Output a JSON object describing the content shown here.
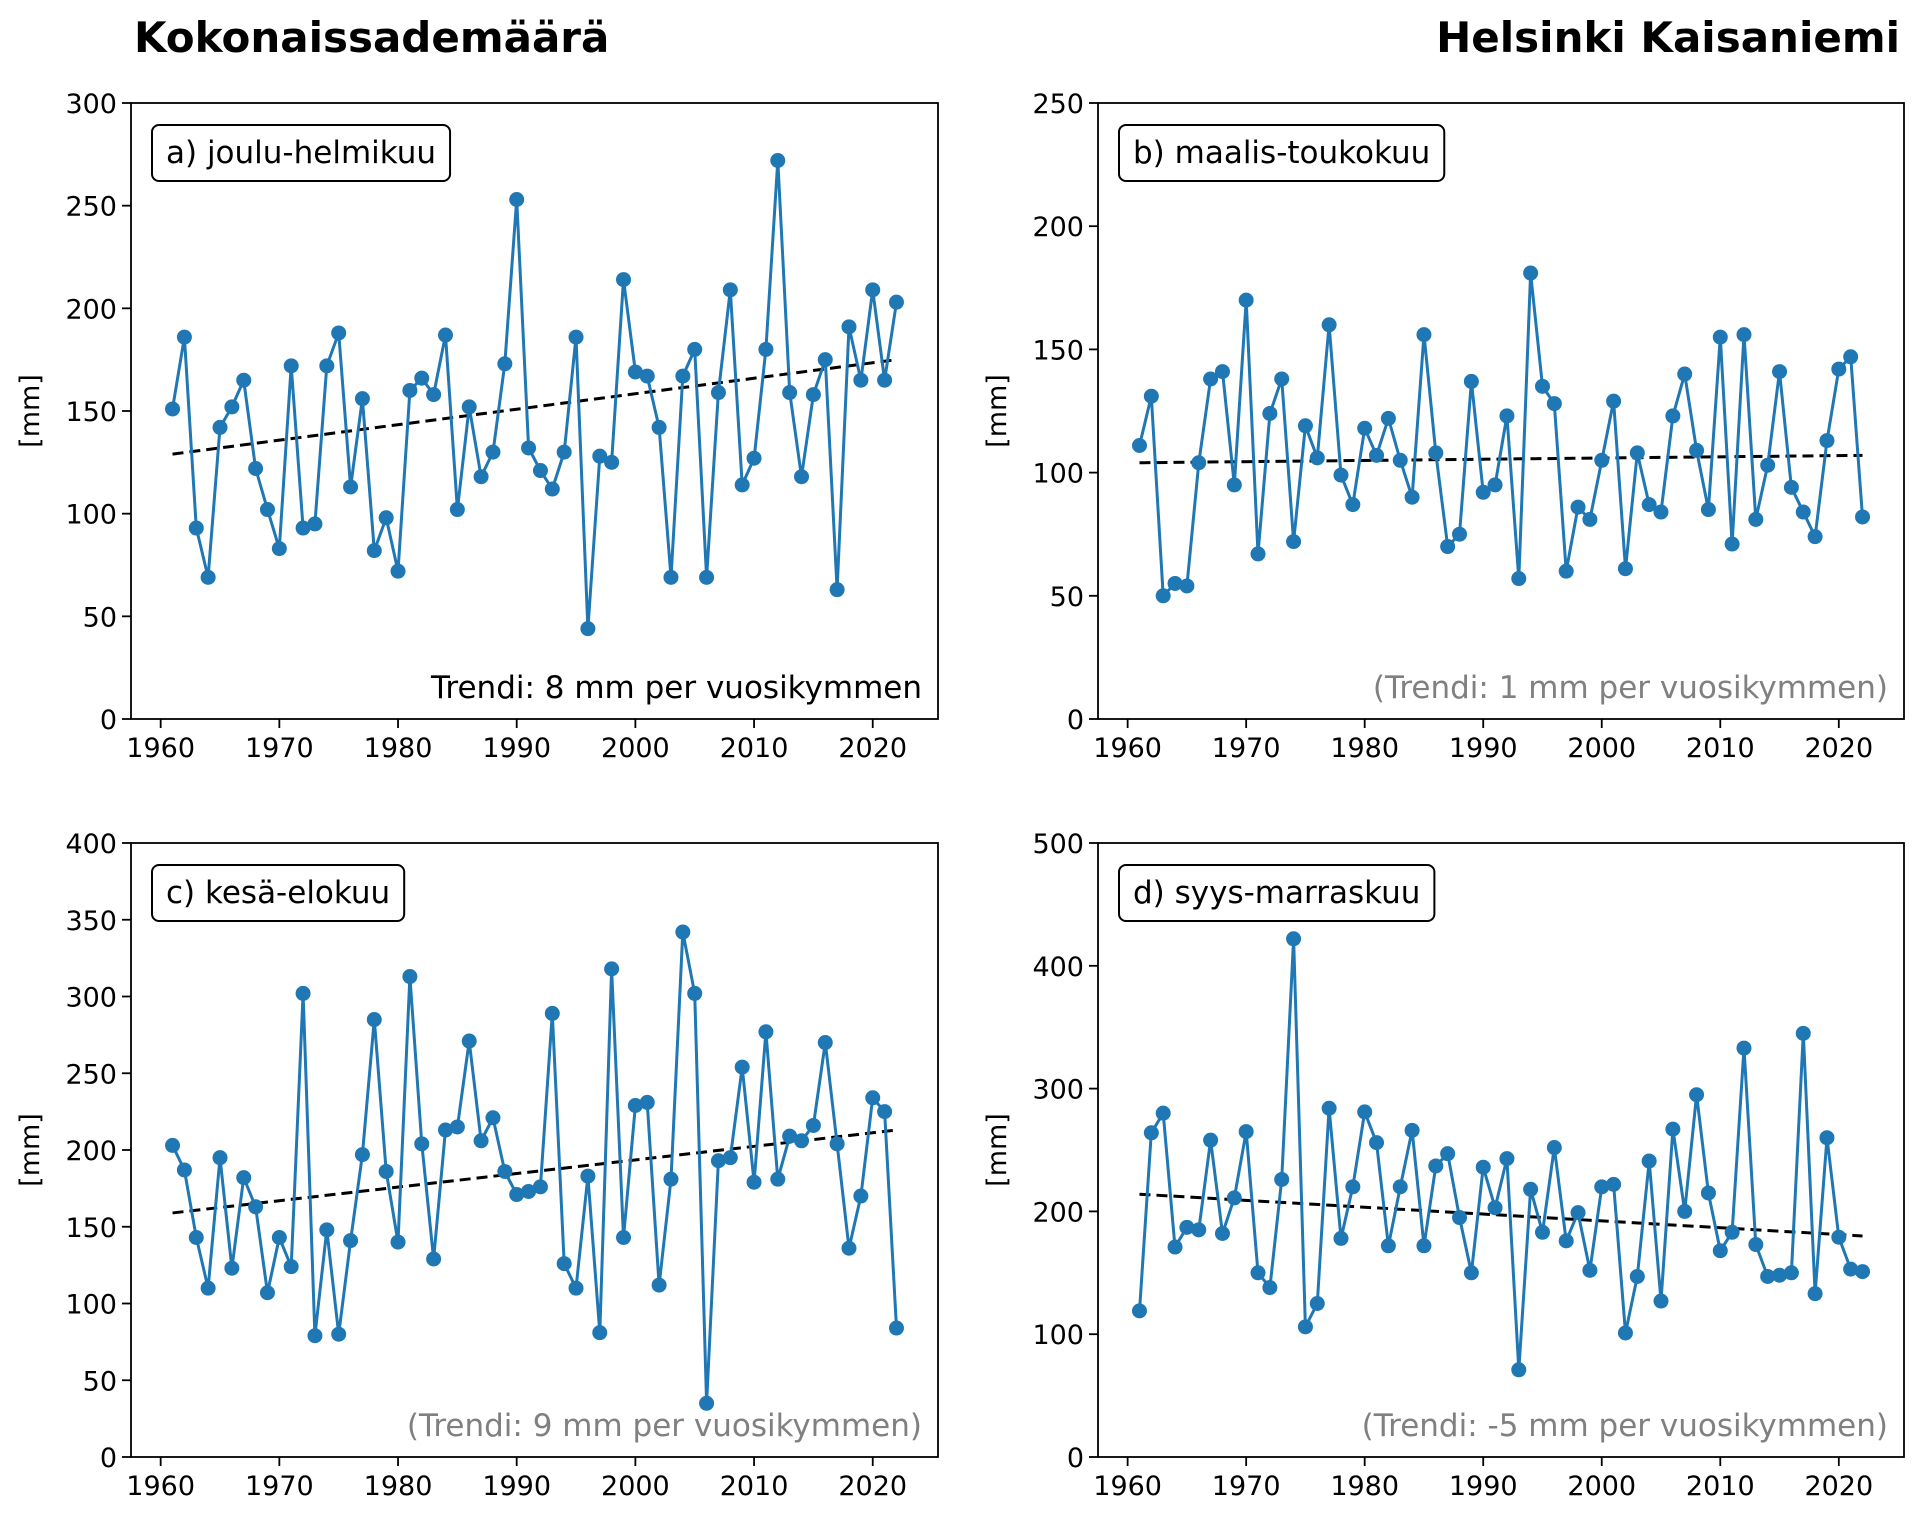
{
  "titles": {
    "left": "Kokonaissademäärä",
    "right": "Helsinki Kaisaniemi"
  },
  "colors": {
    "series": "#1f77b4",
    "trend_line": "#000000",
    "trend_text_significant": "#000000",
    "trend_text_insignificant": "#808080"
  },
  "chart_data": [
    {
      "type": "line",
      "panel": "a",
      "label": "a) joulu-helmikuu",
      "ylabel": "[mm]",
      "xlabel": "",
      "xlim": [
        1957.5,
        2025.5
      ],
      "ylim": [
        0,
        300
      ],
      "xticks": [
        1960,
        1970,
        1980,
        1990,
        2000,
        2010,
        2020
      ],
      "yticks": [
        0,
        50,
        100,
        150,
        200,
        250,
        300
      ],
      "grid": false,
      "annotation": "Trendi: 8 mm per vuosikymmen",
      "annotation_significant": true,
      "x": [
        1961,
        1962,
        1963,
        1964,
        1965,
        1966,
        1967,
        1968,
        1969,
        1970,
        1971,
        1972,
        1973,
        1974,
        1975,
        1976,
        1977,
        1978,
        1979,
        1980,
        1981,
        1982,
        1983,
        1984,
        1985,
        1986,
        1987,
        1988,
        1989,
        1990,
        1991,
        1992,
        1993,
        1994,
        1995,
        1996,
        1997,
        1998,
        1999,
        2000,
        2001,
        2002,
        2003,
        2004,
        2005,
        2006,
        2007,
        2008,
        2009,
        2010,
        2011,
        2012,
        2013,
        2014,
        2015,
        2016,
        2017,
        2018,
        2019,
        2020,
        2021,
        2022
      ],
      "values": [
        151,
        186,
        93,
        69,
        142,
        152,
        165,
        122,
        102,
        83,
        172,
        93,
        95,
        172,
        188,
        113,
        156,
        82,
        98,
        72,
        160,
        166,
        158,
        187,
        102,
        152,
        118,
        130,
        173,
        253,
        132,
        121,
        112,
        130,
        186,
        44,
        128,
        125,
        214,
        169,
        167,
        142,
        69,
        167,
        180,
        69,
        159,
        209,
        114,
        127,
        180,
        272,
        159,
        118,
        158,
        175,
        63,
        191,
        165,
        209,
        165,
        203
      ],
      "trend": {
        "start": [
          1961,
          129
        ],
        "end": [
          2022,
          175
        ]
      }
    },
    {
      "type": "line",
      "panel": "b",
      "label": "b) maalis-toukokuu",
      "ylabel": "[mm]",
      "xlabel": "",
      "xlim": [
        1957.5,
        2025.5
      ],
      "ylim": [
        0,
        250
      ],
      "xticks": [
        1960,
        1970,
        1980,
        1990,
        2000,
        2010,
        2020
      ],
      "yticks": [
        0,
        50,
        100,
        150,
        200,
        250
      ],
      "grid": false,
      "annotation": "(Trendi: 1 mm per vuosikymmen)",
      "annotation_significant": false,
      "x": [
        1961,
        1962,
        1963,
        1964,
        1965,
        1966,
        1967,
        1968,
        1969,
        1970,
        1971,
        1972,
        1973,
        1974,
        1975,
        1976,
        1977,
        1978,
        1979,
        1980,
        1981,
        1982,
        1983,
        1984,
        1985,
        1986,
        1987,
        1988,
        1989,
        1990,
        1991,
        1992,
        1993,
        1994,
        1995,
        1996,
        1997,
        1998,
        1999,
        2000,
        2001,
        2002,
        2003,
        2004,
        2005,
        2006,
        2007,
        2008,
        2009,
        2010,
        2011,
        2012,
        2013,
        2014,
        2015,
        2016,
        2017,
        2018,
        2019,
        2020,
        2021,
        2022
      ],
      "values": [
        111,
        131,
        50,
        55,
        54,
        104,
        138,
        141,
        95,
        170,
        67,
        124,
        138,
        72,
        119,
        106,
        160,
        99,
        87,
        118,
        107,
        122,
        105,
        90,
        156,
        108,
        70,
        75,
        137,
        92,
        95,
        123,
        57,
        181,
        135,
        128,
        60,
        86,
        81,
        105,
        129,
        61,
        108,
        87,
        84,
        123,
        140,
        109,
        85,
        155,
        71,
        156,
        81,
        103,
        141,
        94,
        84,
        74,
        113,
        142,
        147,
        82
      ],
      "trend": {
        "start": [
          1961,
          104
        ],
        "end": [
          2022,
          107
        ]
      }
    },
    {
      "type": "line",
      "panel": "c",
      "label": "c) kesä-elokuu",
      "ylabel": "[mm]",
      "xlabel": "",
      "xlim": [
        1957.5,
        2025.5
      ],
      "ylim": [
        0,
        400
      ],
      "xticks": [
        1960,
        1970,
        1980,
        1990,
        2000,
        2010,
        2020
      ],
      "yticks": [
        0,
        50,
        100,
        150,
        200,
        250,
        300,
        350,
        400
      ],
      "grid": false,
      "annotation": "(Trendi: 9 mm per vuosikymmen)",
      "annotation_significant": false,
      "x": [
        1961,
        1962,
        1963,
        1964,
        1965,
        1966,
        1967,
        1968,
        1969,
        1970,
        1971,
        1972,
        1973,
        1974,
        1975,
        1976,
        1977,
        1978,
        1979,
        1980,
        1981,
        1982,
        1983,
        1984,
        1985,
        1986,
        1987,
        1988,
        1989,
        1990,
        1991,
        1992,
        1993,
        1994,
        1995,
        1996,
        1997,
        1998,
        1999,
        2000,
        2001,
        2002,
        2003,
        2004,
        2005,
        2006,
        2007,
        2008,
        2009,
        2010,
        2011,
        2012,
        2013,
        2014,
        2015,
        2016,
        2017,
        2018,
        2019,
        2020,
        2021,
        2022
      ],
      "values": [
        203,
        187,
        143,
        110,
        195,
        123,
        182,
        163,
        107,
        143,
        124,
        302,
        79,
        148,
        80,
        141,
        197,
        285,
        186,
        140,
        313,
        204,
        129,
        213,
        215,
        271,
        206,
        221,
        186,
        171,
        173,
        176,
        289,
        126,
        110,
        183,
        81,
        318,
        143,
        229,
        231,
        112,
        181,
        342,
        302,
        35,
        193,
        195,
        254,
        179,
        277,
        181,
        209,
        206,
        216,
        270,
        204,
        136,
        170,
        234,
        225,
        84
      ],
      "trend": {
        "start": [
          1961,
          159
        ],
        "end": [
          2022,
          213
        ]
      }
    },
    {
      "type": "line",
      "panel": "d",
      "label": "d) syys-marraskuu",
      "ylabel": "[mm]",
      "xlabel": "",
      "xlim": [
        1957.5,
        2025.5
      ],
      "ylim": [
        0,
        500
      ],
      "xticks": [
        1960,
        1970,
        1980,
        1990,
        2000,
        2010,
        2020
      ],
      "yticks": [
        0,
        100,
        200,
        300,
        400,
        500
      ],
      "grid": false,
      "annotation": "(Trendi: -5 mm per vuosikymmen)",
      "annotation_significant": false,
      "x": [
        1961,
        1962,
        1963,
        1964,
        1965,
        1966,
        1967,
        1968,
        1969,
        1970,
        1971,
        1972,
        1973,
        1974,
        1975,
        1976,
        1977,
        1978,
        1979,
        1980,
        1981,
        1982,
        1983,
        1984,
        1985,
        1986,
        1987,
        1988,
        1989,
        1990,
        1991,
        1992,
        1993,
        1994,
        1995,
        1996,
        1997,
        1998,
        1999,
        2000,
        2001,
        2002,
        2003,
        2004,
        2005,
        2006,
        2007,
        2008,
        2009,
        2010,
        2011,
        2012,
        2013,
        2014,
        2015,
        2016,
        2017,
        2018,
        2019,
        2020,
        2021,
        2022
      ],
      "values": [
        119,
        264,
        280,
        171,
        187,
        185,
        258,
        182,
        211,
        265,
        150,
        138,
        226,
        422,
        106,
        125,
        284,
        178,
        220,
        281,
        256,
        172,
        220,
        266,
        172,
        237,
        247,
        195,
        150,
        236,
        203,
        243,
        71,
        218,
        183,
        252,
        176,
        199,
        152,
        220,
        222,
        101,
        147,
        241,
        127,
        267,
        200,
        295,
        215,
        168,
        183,
        333,
        173,
        147,
        148,
        150,
        345,
        133,
        260,
        179,
        153,
        151
      ],
      "trend": {
        "start": [
          1961,
          214
        ],
        "end": [
          2022,
          180
        ]
      }
    }
  ]
}
